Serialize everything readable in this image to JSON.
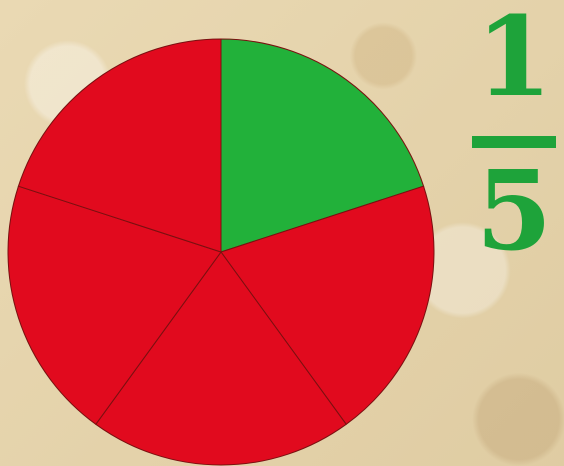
{
  "fraction": {
    "numerator": "1",
    "denominator": "5"
  },
  "pie": {
    "total_slices": 5,
    "shaded_slices": 1,
    "colors": {
      "shaded": "#22b13a",
      "unshaded": "#e10a1e",
      "divider": "#7a1010",
      "fraction": "#1ea33a"
    }
  }
}
